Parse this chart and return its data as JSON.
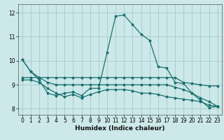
{
  "xlabel": "Humidex (Indice chaleur)",
  "ylabel": "",
  "background_color": "#cce8e8",
  "grid_color": "#aacfcf",
  "line_color": "#1a7070",
  "xlim": [
    -0.5,
    23.5
  ],
  "ylim": [
    7.75,
    12.35
  ],
  "yticks": [
    8,
    9,
    10,
    11,
    12
  ],
  "xticks": [
    0,
    1,
    2,
    3,
    4,
    5,
    6,
    7,
    8,
    9,
    10,
    11,
    12,
    13,
    14,
    15,
    16,
    17,
    18,
    19,
    20,
    21,
    22,
    23
  ],
  "line1_x": [
    0,
    1,
    2,
    3,
    4,
    5,
    6,
    7,
    8,
    9,
    10,
    11,
    12,
    13,
    14,
    15,
    16,
    17,
    18,
    19,
    20,
    21,
    22,
    23
  ],
  "line1_y": [
    10.05,
    9.55,
    9.3,
    9.3,
    9.3,
    9.3,
    9.3,
    9.3,
    9.3,
    9.3,
    9.3,
    9.3,
    9.3,
    9.3,
    9.3,
    9.3,
    9.3,
    9.3,
    9.3,
    9.1,
    9.05,
    9.0,
    8.95,
    8.95
  ],
  "line2_x": [
    0,
    1,
    2,
    3,
    4,
    5,
    6,
    7,
    8,
    9,
    10,
    11,
    12,
    13,
    14,
    15,
    16,
    17,
    18,
    19,
    20,
    21,
    22,
    23
  ],
  "line2_y": [
    10.05,
    9.55,
    9.2,
    8.65,
    8.55,
    8.65,
    8.7,
    8.55,
    8.85,
    8.85,
    10.35,
    11.85,
    11.9,
    11.5,
    11.1,
    10.85,
    9.75,
    9.7,
    9.1,
    9.05,
    8.65,
    8.35,
    8.05,
    8.1
  ],
  "line3_x": [
    0,
    1,
    2,
    3,
    4,
    5,
    6,
    7,
    8,
    9,
    10,
    11,
    12,
    13,
    14,
    15,
    16,
    17,
    18,
    19,
    20,
    21,
    22,
    23
  ],
  "line3_y": [
    9.3,
    9.3,
    9.3,
    9.1,
    9.0,
    9.0,
    9.0,
    9.0,
    9.0,
    9.0,
    9.0,
    9.0,
    9.0,
    9.0,
    9.0,
    9.0,
    9.0,
    9.0,
    8.9,
    8.8,
    8.65,
    8.45,
    8.3,
    8.1
  ],
  "line4_x": [
    0,
    1,
    2,
    3,
    4,
    5,
    6,
    7,
    8,
    9,
    10,
    11,
    12,
    13,
    14,
    15,
    16,
    17,
    18,
    19,
    20,
    21,
    22,
    23
  ],
  "line4_y": [
    9.2,
    9.2,
    9.1,
    8.85,
    8.65,
    8.5,
    8.6,
    8.45,
    8.6,
    8.7,
    8.8,
    8.8,
    8.8,
    8.75,
    8.65,
    8.65,
    8.6,
    8.5,
    8.45,
    8.4,
    8.35,
    8.3,
    8.15,
    8.1
  ],
  "tick_fontsize": 5.5,
  "xlabel_fontsize": 6.5
}
